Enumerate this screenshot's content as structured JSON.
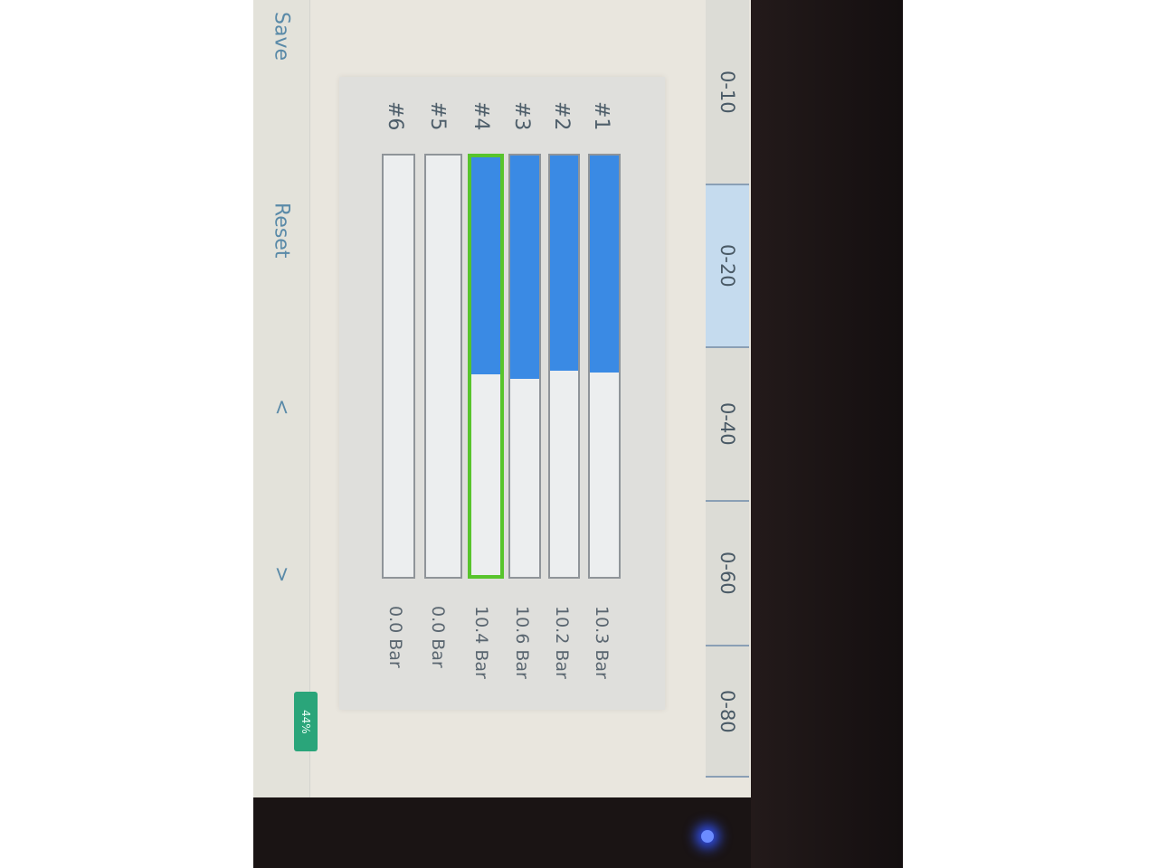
{
  "left_bar": {
    "save": "Save",
    "reset": "Reset",
    "prev": "<",
    "next": ">",
    "battery": "44%",
    "battery_color": "#2aa57a"
  },
  "ranges": [
    {
      "label": "0-10",
      "selected": false
    },
    {
      "label": "0-20",
      "selected": true
    },
    {
      "label": "0-40",
      "selected": false
    },
    {
      "label": "0-60",
      "selected": false
    },
    {
      "label": "0-80",
      "selected": false
    }
  ],
  "range_max": 20,
  "channels": [
    {
      "label": "#1",
      "value": 10.3,
      "display": "10.3 Bar",
      "selected": false
    },
    {
      "label": "#2",
      "value": 10.2,
      "display": "10.2 Bar",
      "selected": false
    },
    {
      "label": "#3",
      "value": 10.6,
      "display": "10.6 Bar",
      "selected": false
    },
    {
      "label": "#4",
      "value": 10.4,
      "display": "10.4 Bar",
      "selected": true
    },
    {
      "label": "#5",
      "value": 0.0,
      "display": "0.0 Bar",
      "selected": false
    },
    {
      "label": "#6",
      "value": 0.0,
      "display": "0.0 Bar",
      "selected": false
    }
  ],
  "colors": {
    "fill": "#3a8ae4",
    "selected_border": "#58c42c",
    "selected_range": "#c5dbee"
  }
}
